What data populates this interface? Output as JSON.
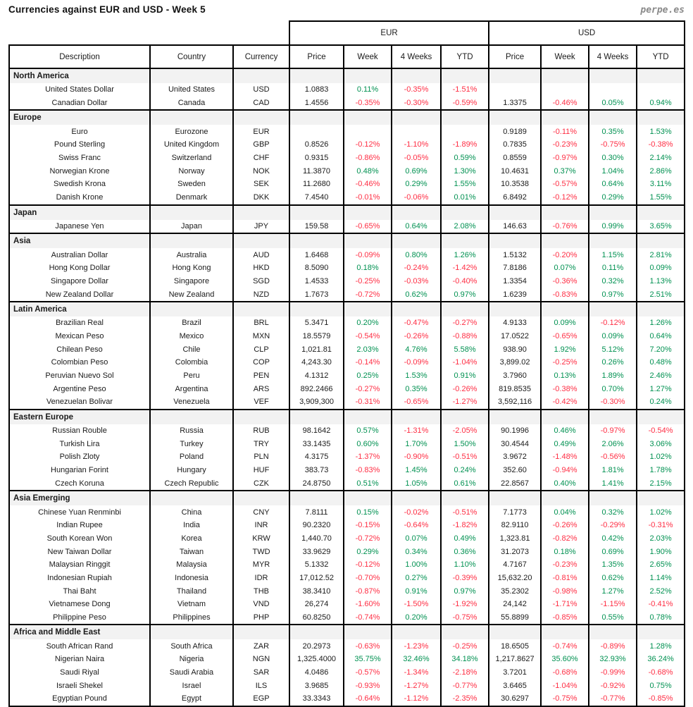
{
  "title": "Currencies against EUR and USD - Week 5",
  "brand": "perpe.es",
  "colors": {
    "positive": "#009151",
    "negative": "#ff2e44",
    "section_bg": "#f2f2f2",
    "border": "#000000"
  },
  "chart_data": {
    "type": "table",
    "group_headers": [
      "EUR",
      "USD"
    ],
    "columns": [
      "Description",
      "Country",
      "Currency",
      "Price",
      "Week",
      "4 Weeks",
      "YTD",
      "Price",
      "Week",
      "4 Weeks",
      "YTD"
    ],
    "sections": [
      {
        "name": "North America",
        "rows": [
          [
            "United States Dollar",
            "United States",
            "USD",
            "1.0883",
            "0.11%",
            "-0.35%",
            "-1.51%",
            "",
            "",
            "",
            ""
          ],
          [
            "Canadian Dollar",
            "Canada",
            "CAD",
            "1.4556",
            "-0.35%",
            "-0.30%",
            "-0.59%",
            "1.3375",
            "-0.46%",
            "0.05%",
            "0.94%"
          ]
        ]
      },
      {
        "name": "Europe",
        "rows": [
          [
            "Euro",
            "Eurozone",
            "EUR",
            "",
            "",
            "",
            "",
            "0.9189",
            "-0.11%",
            "0.35%",
            "1.53%"
          ],
          [
            "Pound Sterling",
            "United Kingdom",
            "GBP",
            "0.8526",
            "-0.12%",
            "-1.10%",
            "-1.89%",
            "0.7835",
            "-0.23%",
            "-0.75%",
            "-0.38%"
          ],
          [
            "Swiss Franc",
            "Switzerland",
            "CHF",
            "0.9315",
            "-0.86%",
            "-0.05%",
            "0.59%",
            "0.8559",
            "-0.97%",
            "0.30%",
            "2.14%"
          ],
          [
            "Norwegian Krone",
            "Norway",
            "NOK",
            "11.3870",
            "0.48%",
            "0.69%",
            "1.30%",
            "10.4631",
            "0.37%",
            "1.04%",
            "2.86%"
          ],
          [
            "Swedish Krona",
            "Sweden",
            "SEK",
            "11.2680",
            "-0.46%",
            "0.29%",
            "1.55%",
            "10.3538",
            "-0.57%",
            "0.64%",
            "3.11%"
          ],
          [
            "Danish Krone",
            "Denmark",
            "DKK",
            "7.4540",
            "-0.01%",
            "-0.06%",
            "0.01%",
            "6.8492",
            "-0.12%",
            "0.29%",
            "1.55%"
          ]
        ]
      },
      {
        "name": "Japan",
        "rows": [
          [
            "Japanese Yen",
            "Japan",
            "JPY",
            "159.58",
            "-0.65%",
            "0.64%",
            "2.08%",
            "146.63",
            "-0.76%",
            "0.99%",
            "3.65%"
          ]
        ]
      },
      {
        "name": "Asia",
        "rows": [
          [
            "Australian Dollar",
            "Australia",
            "AUD",
            "1.6468",
            "-0.09%",
            "0.80%",
            "1.26%",
            "1.5132",
            "-0.20%",
            "1.15%",
            "2.81%"
          ],
          [
            "Hong Kong Dollar",
            "Hong Kong",
            "HKD",
            "8.5090",
            "0.18%",
            "-0.24%",
            "-1.42%",
            "7.8186",
            "0.07%",
            "0.11%",
            "0.09%"
          ],
          [
            "Singapore Dollar",
            "Singapore",
            "SGD",
            "1.4533",
            "-0.25%",
            "-0.03%",
            "-0.40%",
            "1.3354",
            "-0.36%",
            "0.32%",
            "1.13%"
          ],
          [
            "New Zealand Dollar",
            "New Zealand",
            "NZD",
            "1.7673",
            "-0.72%",
            "0.62%",
            "0.97%",
            "1.6239",
            "-0.83%",
            "0.97%",
            "2.51%"
          ]
        ]
      },
      {
        "name": "Latin America",
        "rows": [
          [
            "Brazilian Real",
            "Brazil",
            "BRL",
            "5.3471",
            "0.20%",
            "-0.47%",
            "-0.27%",
            "4.9133",
            "0.09%",
            "-0.12%",
            "1.26%"
          ],
          [
            "Mexican Peso",
            "Mexico",
            "MXN",
            "18.5579",
            "-0.54%",
            "-0.26%",
            "-0.88%",
            "17.0522",
            "-0.65%",
            "0.09%",
            "0.64%"
          ],
          [
            "Chilean Peso",
            "Chile",
            "CLP",
            "1,021.81",
            "2.03%",
            "4.76%",
            "5.58%",
            "938.90",
            "1.92%",
            "5.12%",
            "7.20%"
          ],
          [
            "Colombian Peso",
            "Colombia",
            "COP",
            "4,243.30",
            "-0.14%",
            "-0.09%",
            "-1.04%",
            "3,899.02",
            "-0.25%",
            "0.26%",
            "0.48%"
          ],
          [
            "Peruvian Nuevo Sol",
            "Peru",
            "PEN",
            "4.1312",
            "0.25%",
            "1.53%",
            "0.91%",
            "3.7960",
            "0.13%",
            "1.89%",
            "2.46%"
          ],
          [
            "Argentine Peso",
            "Argentina",
            "ARS",
            "892.2466",
            "-0.27%",
            "0.35%",
            "-0.26%",
            "819.8535",
            "-0.38%",
            "0.70%",
            "1.27%"
          ],
          [
            "Venezuelan Bolivar",
            "Venezuela",
            "VEF",
            "3,909,300",
            "-0.31%",
            "-0.65%",
            "-1.27%",
            "3,592,116",
            "-0.42%",
            "-0.30%",
            "0.24%"
          ]
        ]
      },
      {
        "name": "Eastern Europe",
        "rows": [
          [
            "Russian Rouble",
            "Russia",
            "RUB",
            "98.1642",
            "0.57%",
            "-1.31%",
            "-2.05%",
            "90.1996",
            "0.46%",
            "-0.97%",
            "-0.54%"
          ],
          [
            "Turkish Lira",
            "Turkey",
            "TRY",
            "33.1435",
            "0.60%",
            "1.70%",
            "1.50%",
            "30.4544",
            "0.49%",
            "2.06%",
            "3.06%"
          ],
          [
            "Polish Zloty",
            "Poland",
            "PLN",
            "4.3175",
            "-1.37%",
            "-0.90%",
            "-0.51%",
            "3.9672",
            "-1.48%",
            "-0.56%",
            "1.02%"
          ],
          [
            "Hungarian Forint",
            "Hungary",
            "HUF",
            "383.73",
            "-0.83%",
            "1.45%",
            "0.24%",
            "352.60",
            "-0.94%",
            "1.81%",
            "1.78%"
          ],
          [
            "Czech Koruna",
            "Czech Republic",
            "CZK",
            "24.8750",
            "0.51%",
            "1.05%",
            "0.61%",
            "22.8567",
            "0.40%",
            "1.41%",
            "2.15%"
          ]
        ]
      },
      {
        "name": "Asia Emerging",
        "rows": [
          [
            "Chinese Yuan Renminbi",
            "China",
            "CNY",
            "7.8111",
            "0.15%",
            "-0.02%",
            "-0.51%",
            "7.1773",
            "0.04%",
            "0.32%",
            "1.02%"
          ],
          [
            "Indian Rupee",
            "India",
            "INR",
            "90.2320",
            "-0.15%",
            "-0.64%",
            "-1.82%",
            "82.9110",
            "-0.26%",
            "-0.29%",
            "-0.31%"
          ],
          [
            "South Korean Won",
            "Korea",
            "KRW",
            "1,440.70",
            "-0.72%",
            "0.07%",
            "0.49%",
            "1,323.81",
            "-0.82%",
            "0.42%",
            "2.03%"
          ],
          [
            "New Taiwan Dollar",
            "Taiwan",
            "TWD",
            "33.9629",
            "0.29%",
            "0.34%",
            "0.36%",
            "31.2073",
            "0.18%",
            "0.69%",
            "1.90%"
          ],
          [
            "Malaysian Ringgit",
            "Malaysia",
            "MYR",
            "5.1332",
            "-0.12%",
            "1.00%",
            "1.10%",
            "4.7167",
            "-0.23%",
            "1.35%",
            "2.65%"
          ],
          [
            "Indonesian Rupiah",
            "Indonesia",
            "IDR",
            "17,012.52",
            "-0.70%",
            "0.27%",
            "-0.39%",
            "15,632.20",
            "-0.81%",
            "0.62%",
            "1.14%"
          ],
          [
            "Thai Baht",
            "Thailand",
            "THB",
            "38.3410",
            "-0.87%",
            "0.91%",
            "0.97%",
            "35.2302",
            "-0.98%",
            "1.27%",
            "2.52%"
          ],
          [
            "Vietnamese Dong",
            "Vietnam",
            "VND",
            "26,274",
            "-1.60%",
            "-1.50%",
            "-1.92%",
            "24,142",
            "-1.71%",
            "-1.15%",
            "-0.41%"
          ],
          [
            "Philippine Peso",
            "Philippines",
            "PHP",
            "60.8250",
            "-0.74%",
            "0.20%",
            "-0.75%",
            "55.8899",
            "-0.85%",
            "0.55%",
            "0.78%"
          ]
        ]
      },
      {
        "name": "Africa and Middle East",
        "rows": [
          [
            "South African Rand",
            "South Africa",
            "ZAR",
            "20.2973",
            "-0.63%",
            "-1.23%",
            "-0.25%",
            "18.6505",
            "-0.74%",
            "-0.89%",
            "1.28%"
          ],
          [
            "Nigerian Naira",
            "Nigeria",
            "NGN",
            "1,325.4000",
            "35.75%",
            "32.46%",
            "34.18%",
            "1,217.8627",
            "35.60%",
            "32.93%",
            "36.24%"
          ],
          [
            "Saudi Riyal",
            "Saudi Arabia",
            "SAR",
            "4.0486",
            "-0.57%",
            "-1.34%",
            "-2.18%",
            "3.7201",
            "-0.68%",
            "-0.99%",
            "-0.68%"
          ],
          [
            "Israeli Shekel",
            "Israel",
            "ILS",
            "3.9685",
            "-0.93%",
            "-1.27%",
            "-0.77%",
            "3.6465",
            "-1.04%",
            "-0.92%",
            "0.75%"
          ],
          [
            "Egyptian Pound",
            "Egypt",
            "EGP",
            "33.3343",
            "-0.64%",
            "-1.12%",
            "-2.35%",
            "30.6297",
            "-0.75%",
            "-0.77%",
            "-0.85%"
          ]
        ]
      }
    ]
  }
}
